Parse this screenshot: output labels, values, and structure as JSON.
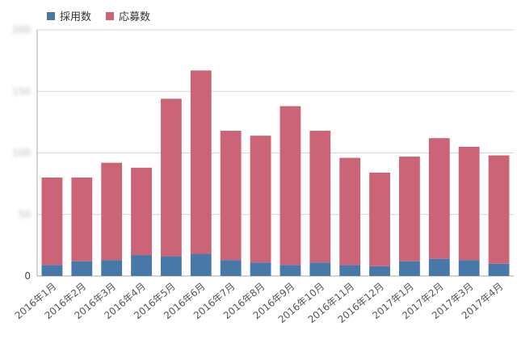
{
  "legend": {
    "position": "top-left",
    "items": [
      {
        "label": "採用数",
        "color": "#4878a8"
      },
      {
        "label": "応募数",
        "color": "#cc6477"
      }
    ]
  },
  "chart_data": {
    "type": "bar",
    "stacked": true,
    "title": "",
    "xlabel": "",
    "ylabel": "",
    "grid": true,
    "ylim": [
      0,
      200
    ],
    "yticks": [
      0,
      50,
      100,
      150,
      200
    ],
    "ytick_labels": [
      "0",
      "",
      "",
      "",
      ""
    ],
    "categories": [
      "2016年1月",
      "2016年2月",
      "2016年3月",
      "2016年4月",
      "2016年5月",
      "2016年6月",
      "2016年7月",
      "2016年8月",
      "2016年9月",
      "2016年10月",
      "2016年11月",
      "2016年12月",
      "2017年1月",
      "2017年2月",
      "2017年3月",
      "2017年4月"
    ],
    "series": [
      {
        "name": "採用数",
        "color": "#4878a8",
        "values": [
          9,
          12,
          13,
          17,
          16,
          18,
          13,
          11,
          9,
          11,
          9,
          8,
          12,
          14,
          13,
          10
        ]
      },
      {
        "name": "応募数",
        "color": "#cc6477",
        "values": [
          71,
          68,
          79,
          71,
          128,
          149,
          105,
          103,
          129,
          107,
          87,
          76,
          85,
          98,
          92,
          88
        ]
      }
    ]
  }
}
